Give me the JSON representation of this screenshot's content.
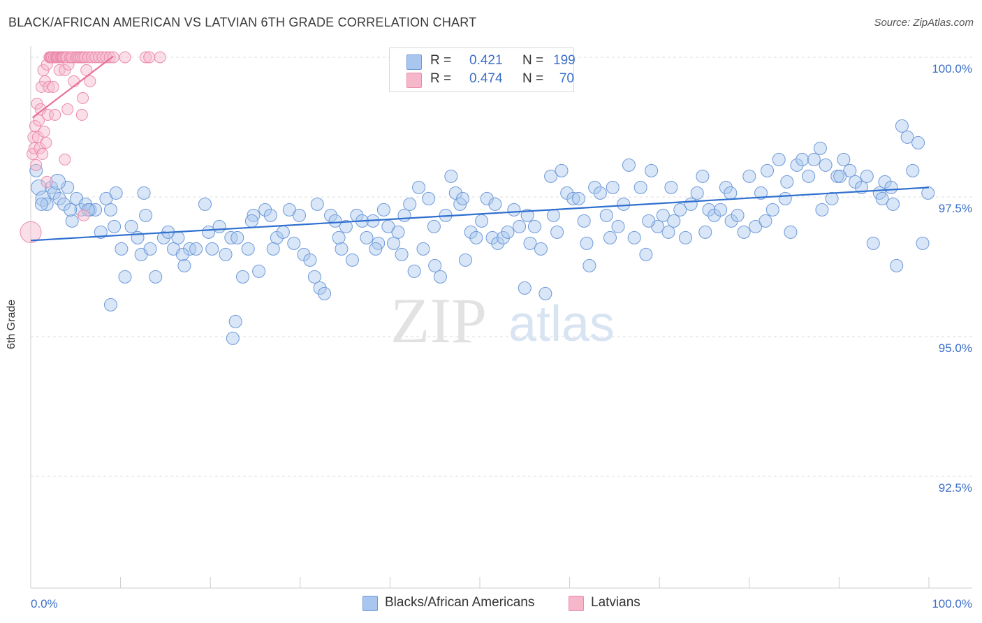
{
  "title": "BLACK/AFRICAN AMERICAN VS LATVIAN 6TH GRADE CORRELATION CHART",
  "source": "Source: ZipAtlas.com",
  "watermark": {
    "part1": "ZIP",
    "part2": "atlas"
  },
  "colors": {
    "blue_fill": "#a9c7ee",
    "blue_stroke": "#6f9ad9",
    "blue_line": "#2f6fcf",
    "pink_fill": "#f6b7cb",
    "pink_stroke": "#ea8aaa",
    "pink_line": "#e8709a",
    "tick_label": "#3b6ec8",
    "grid": "#dddddd"
  },
  "legend": {
    "rows": [
      {
        "r_label": "R =",
        "r_value": "0.421",
        "n_label": "N =",
        "n_value": "199"
      },
      {
        "r_label": "R =",
        "r_value": "0.474",
        "n_label": "N =",
        "n_value": "70"
      }
    ]
  },
  "chart_data": {
    "type": "scatter",
    "title": "BLACK/AFRICAN AMERICAN VS LATVIAN 6TH GRADE CORRELATION CHART",
    "xlabel": "",
    "ylabel": "6th Grade",
    "xlim": [
      0,
      100
    ],
    "ylim": [
      90.5,
      100.2
    ],
    "x_tick_labels": [
      "0.0%",
      "100.0%"
    ],
    "y_ticks": [
      {
        "value": 100.0,
        "label": "100.0%"
      },
      {
        "value": 97.5,
        "label": "97.5%"
      },
      {
        "value": 95.0,
        "label": "95.0%"
      },
      {
        "value": 92.5,
        "label": "92.5%"
      }
    ],
    "grid": true,
    "legend_position": "top-center",
    "series": [
      {
        "name": "Blacks/African Americans",
        "color": "blue",
        "trend": {
          "x": [
            0,
            100
          ],
          "y": [
            96.72,
            97.67
          ]
        },
        "points": [
          [
            0.6,
            97.97
          ],
          [
            0.9,
            97.67
          ],
          [
            1.4,
            97.47
          ],
          [
            1.8,
            97.37
          ],
          [
            2.3,
            97.67
          ],
          [
            2.6,
            97.57
          ],
          [
            3.2,
            97.47
          ],
          [
            3.7,
            97.37
          ],
          [
            4.1,
            97.67
          ],
          [
            4.6,
            97.07
          ],
          [
            5.1,
            97.47
          ],
          [
            5.6,
            97.27
          ],
          [
            6.1,
            97.37
          ],
          [
            6.6,
            97.27
          ],
          [
            7.2,
            97.27
          ],
          [
            7.8,
            96.87
          ],
          [
            8.4,
            97.47
          ],
          [
            8.9,
            97.27
          ],
          [
            9.5,
            97.57
          ],
          [
            10.1,
            96.57
          ],
          [
            10.5,
            96.07
          ],
          [
            11.2,
            96.97
          ],
          [
            11.9,
            96.77
          ],
          [
            12.3,
            96.47
          ],
          [
            12.8,
            97.17
          ],
          [
            13.3,
            96.57
          ],
          [
            13.9,
            96.07
          ],
          [
            14.8,
            96.77
          ],
          [
            15.3,
            96.87
          ],
          [
            15.9,
            96.57
          ],
          [
            16.4,
            96.77
          ],
          [
            17.1,
            96.27
          ],
          [
            17.7,
            96.57
          ],
          [
            18.4,
            96.57
          ],
          [
            19.4,
            97.37
          ],
          [
            20.2,
            96.57
          ],
          [
            21.0,
            96.97
          ],
          [
            21.7,
            96.47
          ],
          [
            22.3,
            96.77
          ],
          [
            23.0,
            96.77
          ],
          [
            23.6,
            96.07
          ],
          [
            24.2,
            96.57
          ],
          [
            24.8,
            97.17
          ],
          [
            25.4,
            96.17
          ],
          [
            26.1,
            97.27
          ],
          [
            26.7,
            97.17
          ],
          [
            27.4,
            96.77
          ],
          [
            28.1,
            96.87
          ],
          [
            28.8,
            97.27
          ],
          [
            29.3,
            96.67
          ],
          [
            29.9,
            97.17
          ],
          [
            30.4,
            96.47
          ],
          [
            31.1,
            96.37
          ],
          [
            31.6,
            96.07
          ],
          [
            32.2,
            95.87
          ],
          [
            32.7,
            95.77
          ],
          [
            33.4,
            97.17
          ],
          [
            33.9,
            97.07
          ],
          [
            34.6,
            96.57
          ],
          [
            35.1,
            96.97
          ],
          [
            35.8,
            96.37
          ],
          [
            36.3,
            97.17
          ],
          [
            36.9,
            97.07
          ],
          [
            37.4,
            96.77
          ],
          [
            38.1,
            97.07
          ],
          [
            38.7,
            96.67
          ],
          [
            39.3,
            97.27
          ],
          [
            39.8,
            96.97
          ],
          [
            40.4,
            96.67
          ],
          [
            40.9,
            96.87
          ],
          [
            41.6,
            97.17
          ],
          [
            42.2,
            97.37
          ],
          [
            42.7,
            96.17
          ],
          [
            43.2,
            97.67
          ],
          [
            43.7,
            96.57
          ],
          [
            44.3,
            97.47
          ],
          [
            45.0,
            96.27
          ],
          [
            45.6,
            96.07
          ],
          [
            46.2,
            97.17
          ],
          [
            46.8,
            97.87
          ],
          [
            47.3,
            97.57
          ],
          [
            47.8,
            97.37
          ],
          [
            48.4,
            96.37
          ],
          [
            49.0,
            96.87
          ],
          [
            49.6,
            96.77
          ],
          [
            50.2,
            97.07
          ],
          [
            50.8,
            97.47
          ],
          [
            51.4,
            96.77
          ],
          [
            52.0,
            96.67
          ],
          [
            52.6,
            96.77
          ],
          [
            53.1,
            96.87
          ],
          [
            53.8,
            97.27
          ],
          [
            54.4,
            96.97
          ],
          [
            55.0,
            95.87
          ],
          [
            55.6,
            96.67
          ],
          [
            56.1,
            96.97
          ],
          [
            56.8,
            96.57
          ],
          [
            57.3,
            95.77
          ],
          [
            57.9,
            97.87
          ],
          [
            58.6,
            96.87
          ],
          [
            59.1,
            97.97
          ],
          [
            59.7,
            97.57
          ],
          [
            60.4,
            97.47
          ],
          [
            61.0,
            97.47
          ],
          [
            61.6,
            97.07
          ],
          [
            62.2,
            96.27
          ],
          [
            62.8,
            97.67
          ],
          [
            63.4,
            97.57
          ],
          [
            64.1,
            97.17
          ],
          [
            64.8,
            97.67
          ],
          [
            65.4,
            96.97
          ],
          [
            66.0,
            97.37
          ],
          [
            66.6,
            98.07
          ],
          [
            67.2,
            96.77
          ],
          [
            67.9,
            97.67
          ],
          [
            68.5,
            96.47
          ],
          [
            69.1,
            97.97
          ],
          [
            69.8,
            96.97
          ],
          [
            70.4,
            97.17
          ],
          [
            71.0,
            96.87
          ],
          [
            71.6,
            97.07
          ],
          [
            72.3,
            97.27
          ],
          [
            72.9,
            96.77
          ],
          [
            73.5,
            97.37
          ],
          [
            74.2,
            97.57
          ],
          [
            74.8,
            97.87
          ],
          [
            75.5,
            97.27
          ],
          [
            76.1,
            97.17
          ],
          [
            76.8,
            97.27
          ],
          [
            77.4,
            97.67
          ],
          [
            78.0,
            97.07
          ],
          [
            78.7,
            97.17
          ],
          [
            79.4,
            96.87
          ],
          [
            80.0,
            97.87
          ],
          [
            80.7,
            96.97
          ],
          [
            81.3,
            97.57
          ],
          [
            82.0,
            97.97
          ],
          [
            82.6,
            97.27
          ],
          [
            83.3,
            98.17
          ],
          [
            84.0,
            97.47
          ],
          [
            84.6,
            96.87
          ],
          [
            85.3,
            98.07
          ],
          [
            85.9,
            98.17
          ],
          [
            86.6,
            97.87
          ],
          [
            87.2,
            98.17
          ],
          [
            87.9,
            98.37
          ],
          [
            88.5,
            98.07
          ],
          [
            89.2,
            97.47
          ],
          [
            89.8,
            97.87
          ],
          [
            90.5,
            98.17
          ],
          [
            91.2,
            97.97
          ],
          [
            91.8,
            97.77
          ],
          [
            92.5,
            97.67
          ],
          [
            93.1,
            97.87
          ],
          [
            93.8,
            96.67
          ],
          [
            94.5,
            97.57
          ],
          [
            95.1,
            97.77
          ],
          [
            95.8,
            97.67
          ],
          [
            96.4,
            96.27
          ],
          [
            97.0,
            98.77
          ],
          [
            97.6,
            98.57
          ],
          [
            98.2,
            97.97
          ],
          [
            98.8,
            98.47
          ],
          [
            99.3,
            96.67
          ],
          [
            99.9,
            97.57
          ],
          [
            1.2,
            97.37
          ],
          [
            4.4,
            97.27
          ],
          [
            9.3,
            96.97
          ],
          [
            16.9,
            96.47
          ],
          [
            24.6,
            97.07
          ],
          [
            31.9,
            97.37
          ],
          [
            38.4,
            96.57
          ],
          [
            44.9,
            96.97
          ],
          [
            51.7,
            97.37
          ],
          [
            58.2,
            97.17
          ],
          [
            64.5,
            96.77
          ],
          [
            71.3,
            97.67
          ],
          [
            77.9,
            97.57
          ],
          [
            84.2,
            97.77
          ],
          [
            90.1,
            97.87
          ],
          [
            96.0,
            97.37
          ],
          [
            6.4,
            97.27
          ],
          [
            12.6,
            97.57
          ],
          [
            19.8,
            96.87
          ],
          [
            27.0,
            96.57
          ],
          [
            34.3,
            96.77
          ],
          [
            41.3,
            96.47
          ],
          [
            48.1,
            97.47
          ],
          [
            55.3,
            97.17
          ],
          [
            61.9,
            96.67
          ],
          [
            68.8,
            97.07
          ],
          [
            75.1,
            96.87
          ],
          [
            81.8,
            97.07
          ],
          [
            88.1,
            97.27
          ],
          [
            94.8,
            97.47
          ],
          [
            8.9,
            95.57
          ],
          [
            22.8,
            95.27
          ],
          [
            22.5,
            94.97
          ],
          [
            3.0,
            97.77
          ]
        ]
      },
      {
        "name": "Latvians",
        "color": "pink",
        "trend": {
          "x": [
            0.2,
            9.2
          ],
          "y": [
            98.92,
            100.02
          ]
        },
        "points": [
          [
            0.0,
            96.87
          ],
          [
            0.2,
            98.27
          ],
          [
            0.3,
            98.57
          ],
          [
            0.4,
            98.37
          ],
          [
            0.5,
            98.77
          ],
          [
            0.6,
            98.07
          ],
          [
            0.7,
            99.17
          ],
          [
            0.8,
            98.57
          ],
          [
            0.9,
            98.87
          ],
          [
            1.0,
            98.37
          ],
          [
            1.1,
            99.07
          ],
          [
            1.2,
            99.47
          ],
          [
            1.3,
            98.27
          ],
          [
            1.4,
            99.77
          ],
          [
            1.5,
            98.67
          ],
          [
            1.6,
            99.57
          ],
          [
            1.7,
            98.47
          ],
          [
            1.8,
            99.87
          ],
          [
            1.9,
            98.97
          ],
          [
            2.0,
            99.47
          ],
          [
            2.1,
            100.0
          ],
          [
            2.2,
            100.0
          ],
          [
            2.3,
            100.0
          ],
          [
            2.4,
            100.0
          ],
          [
            2.5,
            99.47
          ],
          [
            2.6,
            100.0
          ],
          [
            2.7,
            98.97
          ],
          [
            2.8,
            100.0
          ],
          [
            2.9,
            100.0
          ],
          [
            3.0,
            100.0
          ],
          [
            3.1,
            100.0
          ],
          [
            3.2,
            99.77
          ],
          [
            3.3,
            100.0
          ],
          [
            3.4,
            100.0
          ],
          [
            3.5,
            100.0
          ],
          [
            3.6,
            100.0
          ],
          [
            3.7,
            100.0
          ],
          [
            3.8,
            99.77
          ],
          [
            3.9,
            100.0
          ],
          [
            4.0,
            100.0
          ],
          [
            4.2,
            99.87
          ],
          [
            4.4,
            100.0
          ],
          [
            4.6,
            100.0
          ],
          [
            4.8,
            99.57
          ],
          [
            5.0,
            100.0
          ],
          [
            5.2,
            100.0
          ],
          [
            5.4,
            100.0
          ],
          [
            5.6,
            100.0
          ],
          [
            5.8,
            100.0
          ],
          [
            6.0,
            100.0
          ],
          [
            6.2,
            99.77
          ],
          [
            6.4,
            100.0
          ],
          [
            6.8,
            100.0
          ],
          [
            7.2,
            100.0
          ],
          [
            7.6,
            100.0
          ],
          [
            8.0,
            100.0
          ],
          [
            8.4,
            100.0
          ],
          [
            8.8,
            100.0
          ],
          [
            9.2,
            100.0
          ],
          [
            10.5,
            100.0
          ],
          [
            12.8,
            100.0
          ],
          [
            13.2,
            100.0
          ],
          [
            14.4,
            100.0
          ],
          [
            5.8,
            99.27
          ],
          [
            4.1,
            99.07
          ],
          [
            3.8,
            98.17
          ],
          [
            5.7,
            98.97
          ],
          [
            6.6,
            99.57
          ],
          [
            1.8,
            97.77
          ],
          [
            5.9,
            97.17
          ]
        ]
      }
    ]
  },
  "bottom_legend": {
    "items": [
      {
        "label": "Blacks/African Americans"
      },
      {
        "label": "Latvians"
      }
    ]
  }
}
